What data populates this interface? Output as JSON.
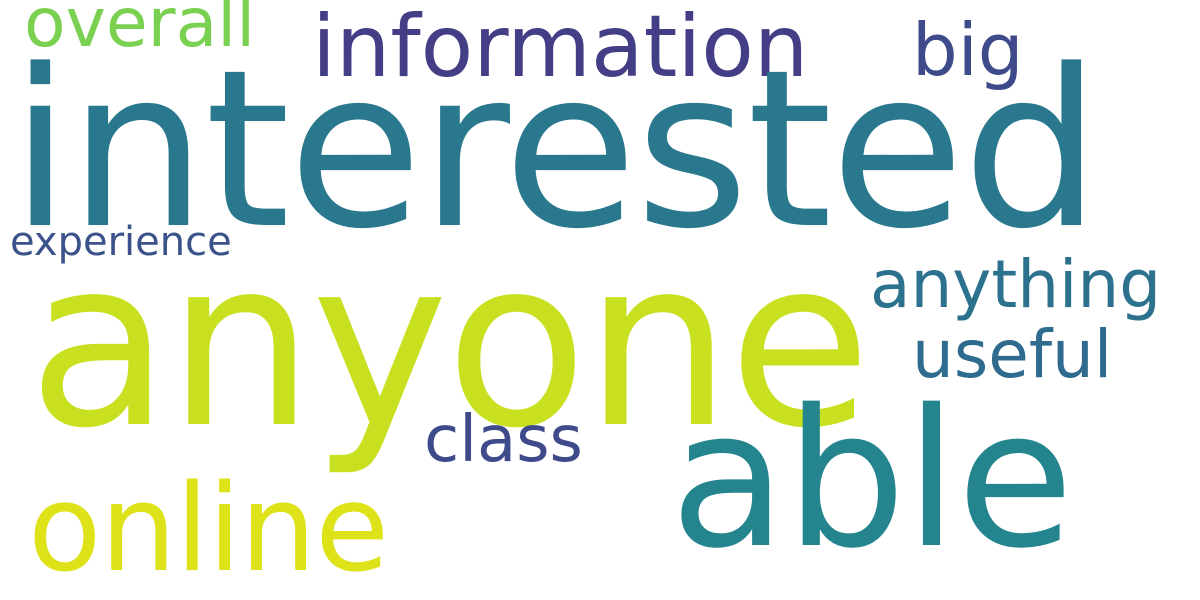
{
  "words": {
    "interested": {
      "text": "interested",
      "color": "#2a788e"
    },
    "anyone": {
      "text": "anyone",
      "color": "#c8e020"
    },
    "able": {
      "text": "able",
      "color": "#25858e"
    },
    "online": {
      "text": "online",
      "color": "#dde318"
    },
    "information": {
      "text": "information",
      "color": "#433e85"
    },
    "overall": {
      "text": "overall",
      "color": "#7ad151"
    },
    "big": {
      "text": "big",
      "color": "#3f4a8a"
    },
    "anything": {
      "text": "anything",
      "color": "#2c728e"
    },
    "useful": {
      "text": "useful",
      "color": "#2f6b8e"
    },
    "class": {
      "text": "class",
      "color": "#3e4a89"
    },
    "experience": {
      "text": "experience",
      "color": "#3b528b"
    }
  }
}
